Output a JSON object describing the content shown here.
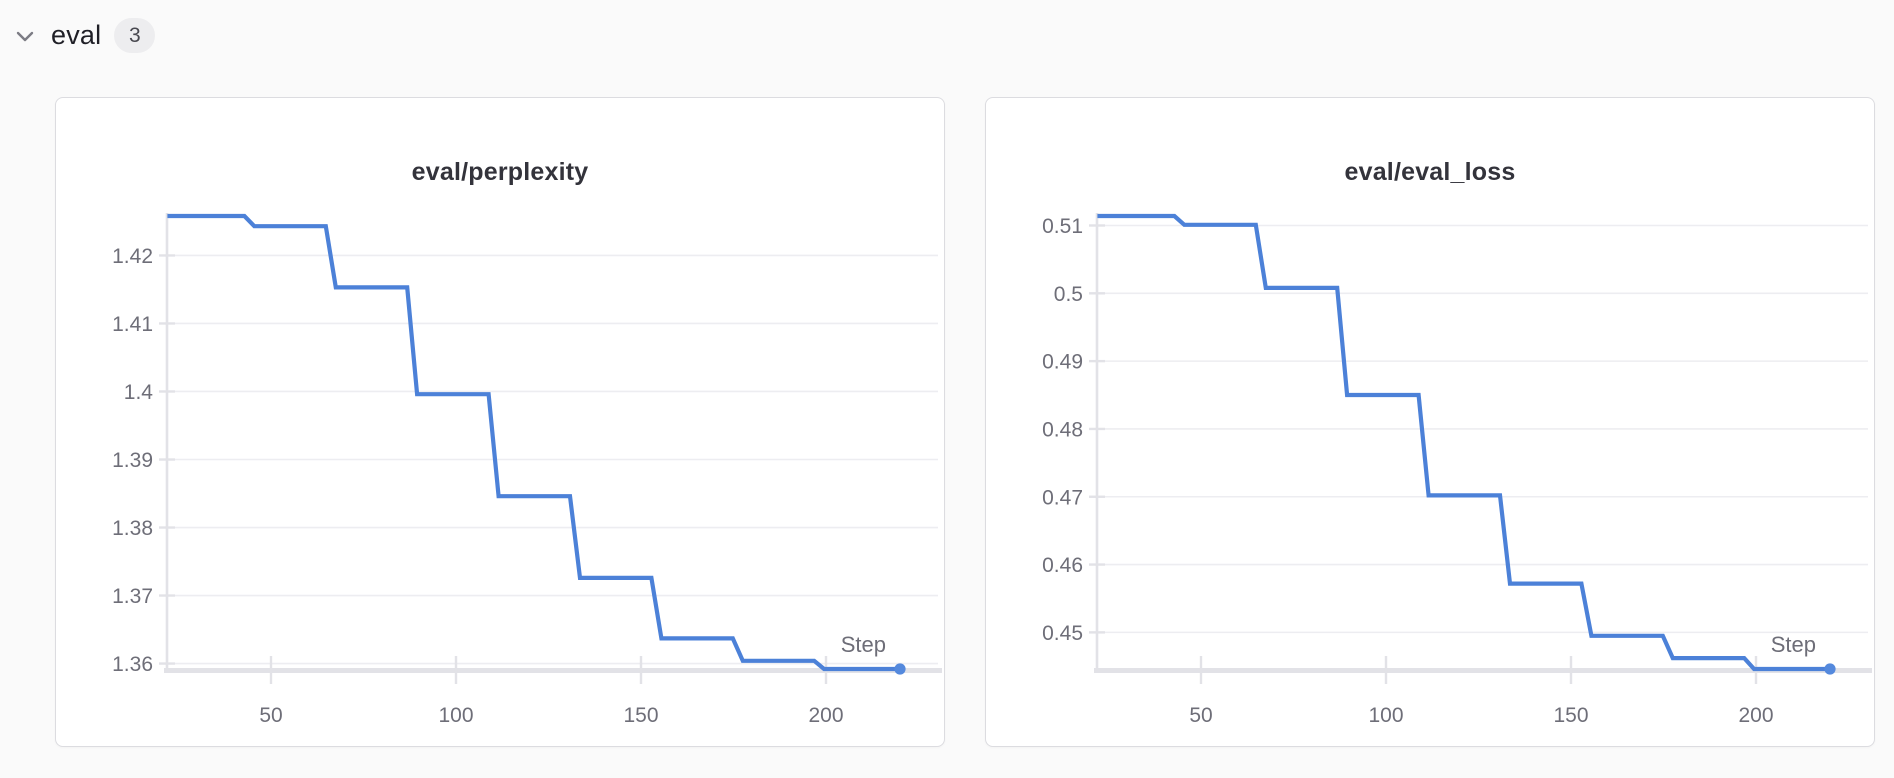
{
  "page": {
    "background_color": "#fafafa"
  },
  "header": {
    "label": "eval",
    "count": "3"
  },
  "chart_data": [
    {
      "type": "line",
      "title": "eval/perplexity",
      "xlabel": "Step",
      "ylabel": "",
      "x": [
        22,
        44,
        66,
        88,
        110,
        132,
        154,
        176,
        198,
        220
      ],
      "y": [
        1.4258,
        1.4243,
        1.4153,
        1.3996,
        1.3846,
        1.3726,
        1.3637,
        1.3604,
        1.3592,
        1.3592
      ],
      "x_ticks": [
        50,
        100,
        150,
        200
      ],
      "y_ticks": [
        {
          "label": "1.42",
          "value": 1.42
        },
        {
          "label": "1.41",
          "value": 1.41
        },
        {
          "label": "1.4",
          "value": 1.4
        },
        {
          "label": "1.39",
          "value": 1.39
        },
        {
          "label": "1.38",
          "value": 1.38
        },
        {
          "label": "1.37",
          "value": 1.37
        },
        {
          "label": "1.36",
          "value": 1.36
        }
      ],
      "xlim": [
        21,
        232
      ],
      "ylim": [
        1.3592,
        1.4258
      ],
      "grid": true,
      "legend": false,
      "interpolation": "step-plateau",
      "end_dot": true,
      "line_color": "#4c81d8"
    },
    {
      "type": "line",
      "title": "eval/eval_loss",
      "xlabel": "Step",
      "ylabel": "",
      "x": [
        22,
        44,
        66,
        88,
        110,
        132,
        154,
        176,
        198,
        220
      ],
      "y": [
        0.5114,
        0.5101,
        0.5008,
        0.485,
        0.4702,
        0.4572,
        0.4495,
        0.4462,
        0.4446,
        0.4446
      ],
      "x_ticks": [
        50,
        100,
        150,
        200
      ],
      "y_ticks": [
        {
          "label": "0.51",
          "value": 0.51
        },
        {
          "label": "0.5",
          "value": 0.5
        },
        {
          "label": "0.49",
          "value": 0.49
        },
        {
          "label": "0.48",
          "value": 0.48
        },
        {
          "label": "0.47",
          "value": 0.47
        },
        {
          "label": "0.46",
          "value": 0.46
        },
        {
          "label": "0.45",
          "value": 0.45
        }
      ],
      "xlim": [
        21,
        232
      ],
      "ylim": [
        0.4446,
        0.5114
      ],
      "grid": true,
      "legend": false,
      "interpolation": "step-plateau",
      "end_dot": true,
      "line_color": "#4c81d8"
    }
  ],
  "colors": {
    "line": "#4c81d8",
    "end_dot": "#5489dd",
    "grid": "#ededf1",
    "axis": "#e2e2e7",
    "tick_text": "#6e6e78",
    "title_text": "#33333b",
    "header_text": "#1f1f26",
    "chevron": "#7c7c84",
    "badge_bg": "#ededef",
    "badge_text": "#48484f",
    "card_border": "#dcdce0",
    "card_bg": "#ffffff",
    "page_bg": "#fafafa"
  }
}
